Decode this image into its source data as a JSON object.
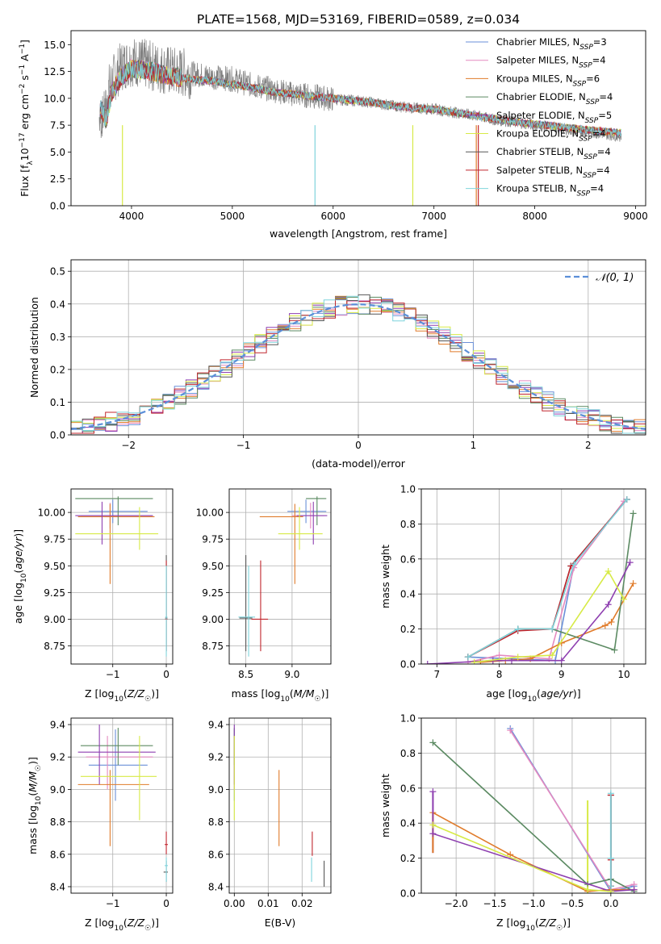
{
  "figure": {
    "title": "PLATE=1568, MJD=53169, FIBERID=0589, z=0.034"
  },
  "models": [
    {
      "name": "Chabrier MILES",
      "nssp": "3",
      "color": "#6a8fd8"
    },
    {
      "name": "Salpeter MILES",
      "nssp": "4",
      "color": "#e58ac0"
    },
    {
      "name": "Kroupa MILES",
      "nssp": "6",
      "color": "#e07b2a"
    },
    {
      "name": "Chabrier ELODIE",
      "nssp": "4",
      "color": "#5b8a62"
    },
    {
      "name": "Salpeter ELODIE",
      "nssp": "5",
      "color": "#8e3fb0"
    },
    {
      "name": "Kroupa ELODIE",
      "nssp": "4",
      "color": "#d7ea46"
    },
    {
      "name": "Chabrier STELIB",
      "nssp": "4",
      "color": "#555555"
    },
    {
      "name": "Salpeter STELIB",
      "nssp": "4",
      "color": "#c0262e"
    },
    {
      "name": "Kroupa STELIB",
      "nssp": "4",
      "color": "#7fd4dc"
    }
  ],
  "chart_data": [
    {
      "id": "spectrum",
      "type": "line",
      "xlabel": "wavelength [Angstrom, rest frame]",
      "ylabel": "Flux [f_λ 10^-17 erg cm^-2 s^-1 A^-1]",
      "xlim": [
        3400,
        9100
      ],
      "ylim": [
        0,
        16.3
      ],
      "xticks": [
        4000,
        5000,
        6000,
        7000,
        8000,
        9000
      ],
      "yticks": [
        0.0,
        2.5,
        5.0,
        7.5,
        10.0,
        12.5,
        15.0
      ],
      "grid": false,
      "legend_position": "top-right",
      "data_color": "#808080",
      "data_anchor_x": [
        3700,
        3800,
        3900,
        4000,
        4200,
        4400,
        4600,
        4800,
        5000,
        5200,
        5400,
        5600,
        5800,
        6000,
        6200,
        6400,
        6600,
        6800,
        7000,
        7200,
        7400,
        7600,
        7800,
        8000,
        8200,
        8400,
        8600,
        8850
      ],
      "data_anchor_y": [
        9.0,
        11.5,
        13.0,
        13.5,
        13.0,
        12.5,
        12.3,
        12.0,
        11.8,
        11.2,
        10.8,
        10.4,
        10.2,
        9.9,
        9.8,
        9.6,
        9.3,
        9.1,
        9.0,
        8.7,
        8.4,
        8.0,
        7.8,
        7.5,
        7.3,
        7.0,
        6.8,
        6.5
      ],
      "model_anchor_x": [
        3700,
        3750,
        3800,
        3900,
        4000,
        4200,
        4400,
        4600,
        4800,
        5000,
        5200,
        5400,
        5600,
        5800,
        6000,
        6200,
        6400,
        6600,
        6800,
        7000,
        7200,
        7400,
        7600,
        7800,
        8000,
        8200,
        8400,
        8600,
        8850
      ],
      "model_anchor_y": [
        9.0,
        8.0,
        10.5,
        12.0,
        12.8,
        12.5,
        12.0,
        11.8,
        11.6,
        11.3,
        11.0,
        10.6,
        10.4,
        10.2,
        10.0,
        9.8,
        9.6,
        9.3,
        9.1,
        9.0,
        8.7,
        8.4,
        8.1,
        7.8,
        7.6,
        7.4,
        7.2,
        7.0,
        6.8
      ],
      "spikes": [
        {
          "x": 3910,
          "color": "#d7ea46"
        },
        {
          "x": 5820,
          "color": "#7fd4dc"
        },
        {
          "x": 6790,
          "color": "#d7ea46"
        },
        {
          "x": 7420,
          "color": "#e07b2a"
        },
        {
          "x": 7440,
          "color": "#c0262e"
        }
      ]
    },
    {
      "id": "residual-histogram",
      "type": "line",
      "xlabel": "(data-model)/error",
      "ylabel": "Normed distribution",
      "xlim": [
        -2.5,
        2.5
      ],
      "ylim": [
        0,
        0.535
      ],
      "xticks": [
        -2,
        -1,
        0,
        1,
        2
      ],
      "yticks": [
        0.0,
        0.1,
        0.2,
        0.3,
        0.4,
        0.5
      ],
      "grid": true,
      "legend_position": "top-right",
      "legend_label": "𝒩(0, 1)",
      "gaussian_color": "#5b8fd8",
      "bin_edges_start": -2.5,
      "bin_width": 0.1
    },
    {
      "id": "age-vs-Z",
      "type": "scatter",
      "xlabel": "Z [log10(Z/Z☉)]",
      "ylabel": "age  [log10(age/yr)]",
      "xlim": [
        -1.78,
        0.12
      ],
      "ylim": [
        8.58,
        10.22
      ],
      "xticks": [
        -1,
        0
      ],
      "yticks": [
        8.75,
        9.0,
        9.25,
        9.5,
        9.75,
        10.0
      ],
      "ytick_labels": [
        "8.75",
        "9.00",
        "9.25",
        "9.50",
        "9.75",
        "10.00"
      ],
      "grid": true,
      "points": [
        {
          "x": -1.0,
          "x_lo": -1.45,
          "x_hi": -0.35,
          "y": 10.01,
          "y_lo": 9.9,
          "y_hi": 10.12,
          "model": 0
        },
        {
          "x": -1.05,
          "x_lo": -1.6,
          "x_hi": -0.28,
          "y": 9.97,
          "y_lo": 9.85,
          "y_hi": 10.09,
          "model": 1
        },
        {
          "x": -1.05,
          "x_lo": -1.65,
          "x_hi": -0.22,
          "y": 9.96,
          "y_lo": 9.33,
          "y_hi": 10.08,
          "model": 2
        },
        {
          "x": -0.9,
          "x_lo": -1.7,
          "x_hi": -0.25,
          "y": 10.13,
          "y_lo": 9.88,
          "y_hi": 10.15,
          "model": 3
        },
        {
          "x": -1.2,
          "x_lo": -1.7,
          "x_hi": -0.25,
          "y": 9.97,
          "y_lo": 9.7,
          "y_hi": 10.1,
          "model": 4
        },
        {
          "x": -0.5,
          "x_lo": -1.7,
          "x_hi": -0.15,
          "y": 9.8,
          "y_lo": 9.65,
          "y_hi": 10.05,
          "model": 5
        },
        {
          "x": 0.0,
          "x_lo": -0.02,
          "x_hi": 0.02,
          "y": 9.01,
          "y_lo": 8.7,
          "y_hi": 9.6,
          "model": 6
        },
        {
          "x": 0.0,
          "x_lo": -0.02,
          "x_hi": 0.02,
          "y": 9.0,
          "y_lo": 8.7,
          "y_hi": 9.55,
          "model": 7
        },
        {
          "x": 0.0,
          "x_lo": -0.02,
          "x_hi": 0.02,
          "y": 9.02,
          "y_lo": 8.65,
          "y_hi": 9.5,
          "model": 8
        }
      ]
    },
    {
      "id": "age-vs-mass",
      "type": "scatter",
      "xlabel": "mass [log10(M/M☉)]",
      "ylabel": "",
      "xlim": [
        8.32,
        9.42
      ],
      "ylim": [
        8.58,
        10.22
      ],
      "xticks": [
        8.5,
        9.0
      ],
      "yticks": [
        8.75,
        9.0,
        9.25,
        9.5,
        9.75,
        10.0
      ],
      "ytick_labels": [
        "8.75",
        "9.00",
        "9.25",
        "9.50",
        "9.75",
        "10.00"
      ],
      "grid": true,
      "points": [
        {
          "x": 9.15,
          "x_lo": 8.95,
          "x_hi": 9.37,
          "y": 10.01,
          "y_lo": 9.9,
          "y_hi": 10.12,
          "model": 0
        },
        {
          "x": 9.2,
          "x_lo": 9.0,
          "x_hi": 9.35,
          "y": 9.97,
          "y_lo": 9.85,
          "y_hi": 10.09,
          "model": 1
        },
        {
          "x": 9.03,
          "x_lo": 8.65,
          "x_hi": 9.12,
          "y": 9.96,
          "y_lo": 9.33,
          "y_hi": 10.08,
          "model": 2
        },
        {
          "x": 9.27,
          "x_lo": 9.15,
          "x_hi": 9.37,
          "y": 10.13,
          "y_lo": 9.88,
          "y_hi": 10.15,
          "model": 3
        },
        {
          "x": 9.23,
          "x_lo": 9.05,
          "x_hi": 9.38,
          "y": 9.97,
          "y_lo": 9.7,
          "y_hi": 10.1,
          "model": 4
        },
        {
          "x": 9.08,
          "x_lo": 8.85,
          "x_hi": 9.33,
          "y": 9.8,
          "y_lo": 9.65,
          "y_hi": 10.05,
          "model": 5
        },
        {
          "x": 8.5,
          "x_lo": 8.43,
          "x_hi": 8.57,
          "y": 9.01,
          "y_lo": 8.7,
          "y_hi": 9.6,
          "model": 6
        },
        {
          "x": 8.66,
          "x_lo": 8.56,
          "x_hi": 8.74,
          "y": 9.0,
          "y_lo": 8.7,
          "y_hi": 9.55,
          "model": 7
        },
        {
          "x": 8.53,
          "x_lo": 8.42,
          "x_hi": 8.6,
          "y": 9.02,
          "y_lo": 8.65,
          "y_hi": 9.5,
          "model": 8
        }
      ]
    },
    {
      "id": "mass-weight-vs-age",
      "type": "line",
      "xlabel": "age  [log10(age/yr)]",
      "ylabel": "mass weight",
      "xlim": [
        6.75,
        10.35
      ],
      "ylim": [
        0,
        1.0
      ],
      "xticks": [
        7,
        8,
        9,
        10
      ],
      "yticks": [
        0.0,
        0.2,
        0.4,
        0.6,
        0.8,
        1.0
      ],
      "grid": true,
      "series": [
        {
          "model": 0,
          "x": [
            7.5,
            8.9,
            9.2,
            10.05
          ],
          "y": [
            0.04,
            0.02,
            0.57,
            0.94
          ]
        },
        {
          "model": 1,
          "x": [
            7.5,
            8.0,
            8.8,
            9.2,
            10.0
          ],
          "y": [
            0.01,
            0.05,
            0.03,
            0.55,
            0.93
          ]
        },
        {
          "model": 2,
          "x": [
            7.7,
            8.1,
            8.5,
            9.0,
            9.7,
            9.8,
            10.15
          ],
          "y": [
            0.01,
            0.02,
            0.03,
            0.12,
            0.22,
            0.24,
            0.46
          ]
        },
        {
          "model": 3,
          "x": [
            7.5,
            8.3,
            8.85,
            9.85,
            10.15
          ],
          "y": [
            0.04,
            0.2,
            0.2,
            0.08,
            0.86
          ]
        },
        {
          "model": 4,
          "x": [
            6.85,
            7.9,
            8.2,
            9.0,
            9.75,
            10.1
          ],
          "y": [
            0.0,
            0.02,
            0.02,
            0.02,
            0.34,
            0.58
          ]
        },
        {
          "model": 5,
          "x": [
            7.6,
            8.3,
            8.85,
            9.75,
            10.0
          ],
          "y": [
            0.01,
            0.04,
            0.05,
            0.53,
            0.37
          ]
        },
        {
          "model": 6,
          "x": [
            7.5,
            8.3,
            8.85,
            9.15,
            10.05
          ],
          "y": [
            0.04,
            0.2,
            0.2,
            0.56,
            0.94
          ]
        },
        {
          "model": 7,
          "x": [
            7.5,
            8.3,
            8.85,
            9.15,
            10.05
          ],
          "y": [
            0.04,
            0.19,
            0.2,
            0.56,
            0.94
          ]
        },
        {
          "model": 8,
          "x": [
            7.5,
            8.3,
            8.85,
            9.2,
            10.05
          ],
          "y": [
            0.04,
            0.2,
            0.2,
            0.57,
            0.94
          ]
        }
      ]
    },
    {
      "id": "mass-vs-Z",
      "type": "scatter",
      "xlabel": "Z [log10(Z/Z☉)]",
      "ylabel": "mass [log10(M/M☉)]",
      "xlim": [
        -1.78,
        0.12
      ],
      "ylim": [
        8.36,
        9.44
      ],
      "xticks": [
        -1,
        0
      ],
      "yticks": [
        8.4,
        8.6,
        8.8,
        9.0,
        9.2,
        9.4
      ],
      "grid": true,
      "points": [
        {
          "x": -0.95,
          "x_lo": -1.45,
          "x_hi": -0.35,
          "y": 9.15,
          "y_lo": 8.93,
          "y_hi": 9.37,
          "model": 0
        },
        {
          "x": -1.1,
          "x_lo": -1.5,
          "x_hi": -0.25,
          "y": 9.2,
          "y_lo": 9.0,
          "y_hi": 9.33,
          "model": 1
        },
        {
          "x": -1.05,
          "x_lo": -1.65,
          "x_hi": -0.32,
          "y": 9.03,
          "y_lo": 8.65,
          "y_hi": 9.12,
          "model": 2
        },
        {
          "x": -0.9,
          "x_lo": -1.6,
          "x_hi": -0.25,
          "y": 9.27,
          "y_lo": 9.15,
          "y_hi": 9.38,
          "model": 3
        },
        {
          "x": -1.25,
          "x_lo": -1.65,
          "x_hi": -0.2,
          "y": 9.23,
          "y_lo": 9.03,
          "y_hi": 9.4,
          "model": 4
        },
        {
          "x": -0.5,
          "x_lo": -1.6,
          "x_hi": -0.18,
          "y": 9.08,
          "y_lo": 8.81,
          "y_hi": 9.33,
          "model": 5
        },
        {
          "x": 0.0,
          "x_lo": -0.05,
          "x_hi": 0.03,
          "y": 8.49,
          "y_lo": 8.43,
          "y_hi": 8.56,
          "model": 6
        },
        {
          "x": 0.0,
          "x_lo": -0.03,
          "x_hi": 0.03,
          "y": 8.66,
          "y_lo": 8.6,
          "y_hi": 8.74,
          "model": 7
        },
        {
          "x": 0.0,
          "x_lo": -0.03,
          "x_hi": 0.03,
          "y": 8.53,
          "y_lo": 8.43,
          "y_hi": 8.58,
          "model": 8
        }
      ]
    },
    {
      "id": "mass-vs-ebv",
      "type": "scatter",
      "xlabel": "E(B-V)",
      "ylabel": "",
      "xlim": [
        -0.0015,
        0.0285
      ],
      "ylim": [
        8.36,
        9.44
      ],
      "xticks": [
        0.0,
        0.01,
        0.02
      ],
      "xtick_labels": [
        "0.00",
        "0.01",
        "0.02"
      ],
      "yticks": [
        8.4,
        8.6,
        8.8,
        9.0,
        9.2,
        9.4
      ],
      "grid": true,
      "points": [
        {
          "x": 0.0,
          "y": 9.15,
          "y_lo": 8.93,
          "y_hi": 9.37,
          "model": 0
        },
        {
          "x": 0.0,
          "y": 9.2,
          "y_lo": 9.0,
          "y_hi": 9.33,
          "model": 1
        },
        {
          "x": 0.0132,
          "y": 9.03,
          "y_lo": 8.65,
          "y_hi": 9.12,
          "model": 2
        },
        {
          "x": 0.0,
          "y": 9.27,
          "y_lo": 9.15,
          "y_hi": 9.38,
          "model": 3
        },
        {
          "x": 0.0,
          "y": 9.23,
          "y_lo": 9.03,
          "y_hi": 9.4,
          "model": 4
        },
        {
          "x": 0.0,
          "y": 9.08,
          "y_lo": 8.81,
          "y_hi": 9.33,
          "model": 5
        },
        {
          "x": 0.0265,
          "y": 8.49,
          "y_lo": 8.4,
          "y_hi": 8.56,
          "model": 6
        },
        {
          "x": 0.023,
          "y": 8.66,
          "y_lo": 8.59,
          "y_hi": 8.74,
          "model": 7
        },
        {
          "x": 0.0228,
          "y": 8.53,
          "y_lo": 8.43,
          "y_hi": 8.58,
          "model": 8
        }
      ]
    },
    {
      "id": "mass-weight-vs-Z",
      "type": "line",
      "xlabel": "Z [log10(Z/Z☉)]",
      "ylabel": "mass weight",
      "xlim": [
        -2.45,
        0.45
      ],
      "ylim": [
        0,
        1.0
      ],
      "xticks": [
        -2.0,
        -1.5,
        -1.0,
        -0.5,
        0.0
      ],
      "yticks": [
        0.0,
        0.2,
        0.4,
        0.6,
        0.8,
        1.0
      ],
      "grid": true,
      "series": [
        {
          "model": 0,
          "x": [
            -1.3,
            0.0,
            0.3
          ],
          "y": [
            0.94,
            0.01,
            0.04
          ]
        },
        {
          "model": 1,
          "x": [
            -1.3,
            0.0,
            0.3
          ],
          "y": [
            0.93,
            0.02,
            0.05
          ]
        },
        {
          "model": 2,
          "x": [
            -2.3,
            -1.3,
            -0.3,
            0.0,
            0.3
          ],
          "y": [
            0.46,
            0.22,
            0.01,
            0.02,
            0.02
          ]
        },
        {
          "model": 3,
          "x": [
            -2.3,
            -0.3,
            0.0,
            0.3
          ],
          "y": [
            0.86,
            0.05,
            0.08,
            0.01
          ]
        },
        {
          "model": 4,
          "x": [
            -2.3,
            -2.3,
            0.0,
            0.3
          ],
          "y": [
            0.58,
            0.34,
            0.01,
            0.02
          ]
        },
        {
          "model": 5,
          "x": [
            -2.3,
            -0.3,
            0.0
          ],
          "y": [
            0.39,
            0.02,
            0.01
          ]
        },
        {
          "model": 6,
          "x": [
            0.0,
            0.0,
            0.0
          ],
          "y": [
            0.56,
            0.2,
            0.04
          ]
        },
        {
          "model": 7,
          "x": [
            0.0,
            0.0,
            0.0
          ],
          "y": [
            0.56,
            0.19,
            0.04
          ]
        },
        {
          "model": 8,
          "x": [
            0.0,
            0.0,
            0.0
          ],
          "y": [
            0.57,
            0.2,
            0.04
          ]
        }
      ],
      "vertical_segments": [
        {
          "model": 5,
          "x": -0.3,
          "y": [
            0.0,
            0.53
          ]
        },
        {
          "model": 8,
          "x": 0.0,
          "y": [
            0.0,
            0.57
          ]
        },
        {
          "model": 4,
          "x": -2.3,
          "y": [
            0.23,
            0.58
          ]
        },
        {
          "model": 2,
          "x": -2.3,
          "y": [
            0.23,
            0.46
          ]
        }
      ]
    }
  ]
}
